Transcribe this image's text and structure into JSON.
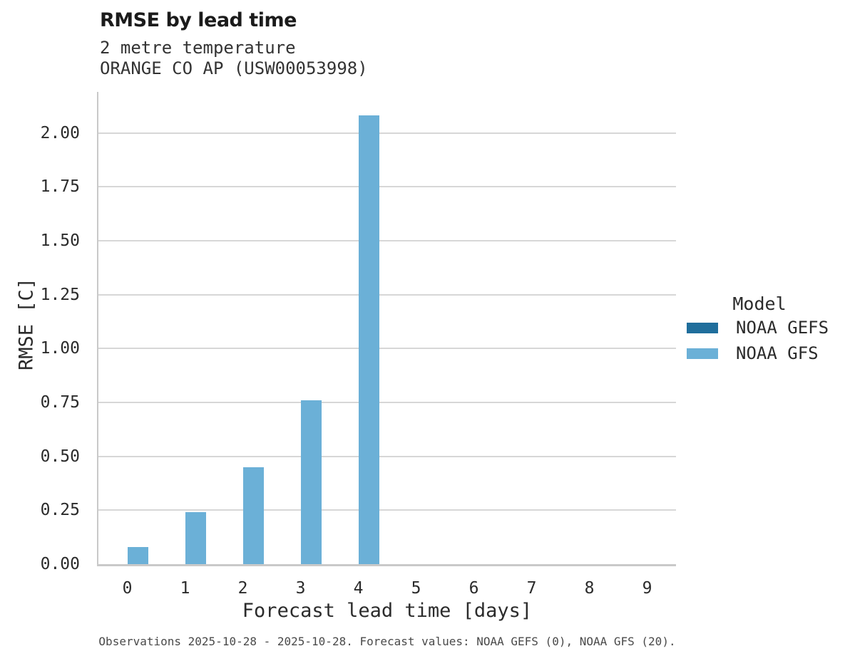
{
  "header": {
    "title": "RMSE by lead time",
    "subtitle_lines": [
      "2 metre temperature",
      "ORANGE CO AP (USW00053998)"
    ]
  },
  "legend": {
    "title": "Model",
    "items": [
      {
        "label": "NOAA GEFS",
        "color": "#1f6e9c"
      },
      {
        "label": "NOAA GFS",
        "color": "#6bb0d7"
      }
    ]
  },
  "footer": {
    "caption": "Observations 2025-10-28 - 2025-10-28. Forecast values: NOAA GEFS (0), NOAA GFS (20)."
  },
  "chart_data": {
    "type": "bar",
    "title": "RMSE by lead time",
    "subtitle": "2 metre temperature",
    "station": "ORANGE CO AP (USW00053998)",
    "categories": [
      "0",
      "1",
      "2",
      "3",
      "4",
      "5",
      "6",
      "7",
      "8",
      "9"
    ],
    "series": [
      {
        "name": "NOAA GEFS",
        "color": "#1f6e9c",
        "values": [
          null,
          null,
          null,
          null,
          null,
          null,
          null,
          null,
          null,
          null
        ]
      },
      {
        "name": "NOAA GFS",
        "color": "#6bb0d7",
        "values": [
          0.08,
          0.24,
          0.45,
          0.76,
          2.08,
          null,
          null,
          null,
          null,
          null
        ]
      }
    ],
    "xlabel": "Forecast lead time [days]",
    "ylabel": "RMSE [C]",
    "ylim": [
      0,
      2.19
    ],
    "yticks": [
      0,
      0.25,
      0.5,
      0.75,
      1,
      1.25,
      1.5,
      1.75,
      2
    ],
    "grid": "horizontal",
    "legend_position": "right"
  }
}
